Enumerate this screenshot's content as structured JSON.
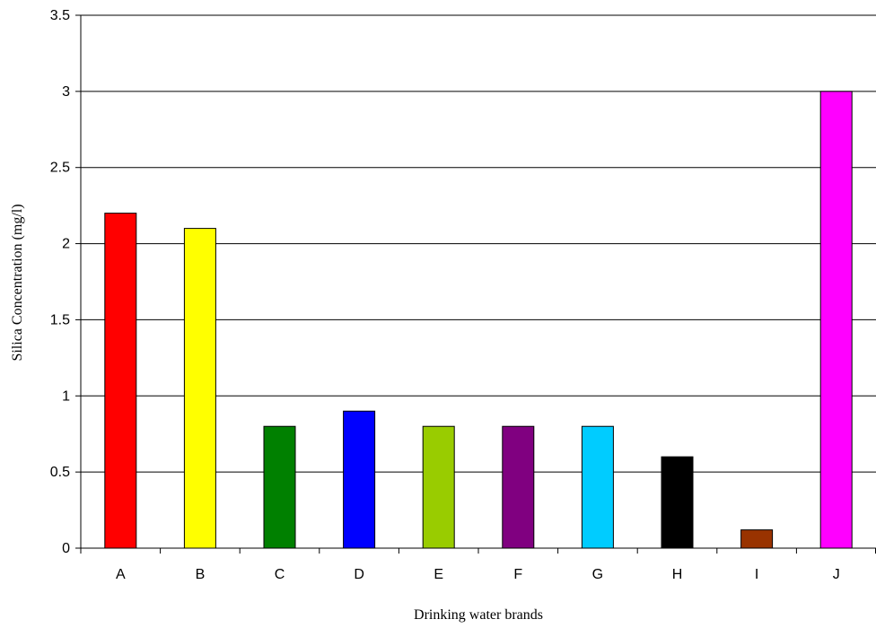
{
  "chart_data": {
    "type": "bar",
    "title": "",
    "xlabel": "Drinking water brands",
    "ylabel": "Silica Concentration (mg/l)",
    "ylim": [
      0,
      3.5
    ],
    "yticks": [
      "0",
      "0.5",
      "1",
      "1.5",
      "2",
      "2.5",
      "3",
      "3.5"
    ],
    "grid": true,
    "legend": "none",
    "categories": [
      "A",
      "B",
      "C",
      "D",
      "E",
      "F",
      "G",
      "H",
      "I",
      "J"
    ],
    "values": [
      2.2,
      2.1,
      0.8,
      0.9,
      0.8,
      0.8,
      0.8,
      0.6,
      0.12,
      3.0
    ],
    "colors": [
      "#ff0000",
      "#ffff00",
      "#008000",
      "#0000ff",
      "#99cc00",
      "#800080",
      "#00ccff",
      "#000000",
      "#993300",
      "#ff00ff"
    ]
  }
}
